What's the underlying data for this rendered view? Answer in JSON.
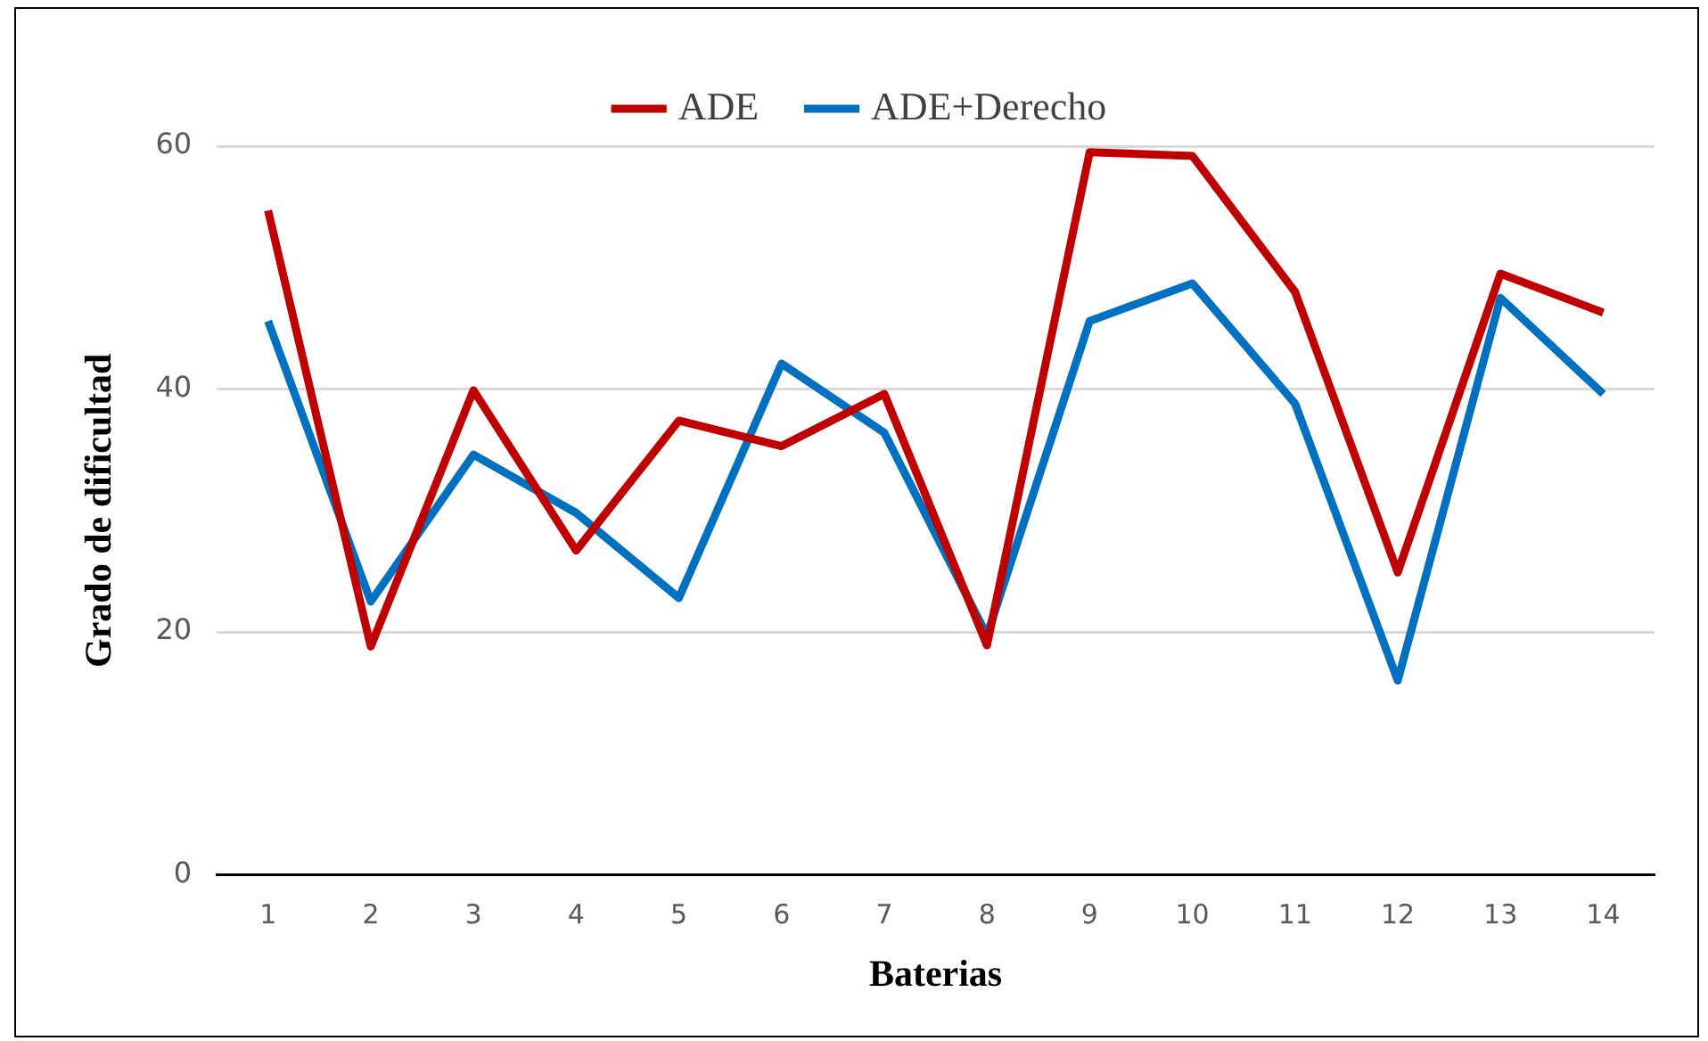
{
  "chart_data": {
    "type": "line",
    "xlabel": "Baterias",
    "ylabel": "Grado de dificultad",
    "categories": [
      "1",
      "2",
      "3",
      "4",
      "5",
      "6",
      "7",
      "8",
      "9",
      "10",
      "11",
      "12",
      "13",
      "14"
    ],
    "series": [
      {
        "name": "ADE",
        "color": "#c00000",
        "values": [
          54.7,
          18.8,
          39.9,
          26.7,
          37.4,
          35.3,
          39.6,
          18.9,
          59.5,
          59.2,
          48.0,
          24.9,
          49.5,
          46.3
        ]
      },
      {
        "name": "ADE+Derecho",
        "color": "#0070c0",
        "values": [
          45.6,
          22.5,
          34.6,
          29.8,
          22.8,
          42.1,
          36.4,
          19.7,
          45.6,
          48.7,
          38.8,
          16.0,
          47.5,
          39.6
        ]
      }
    ],
    "ylim": [
      0,
      60
    ],
    "yticks": [
      0,
      20,
      40,
      60
    ],
    "grid": "y",
    "legend": "top",
    "marker": "none",
    "line_style": "solid"
  }
}
